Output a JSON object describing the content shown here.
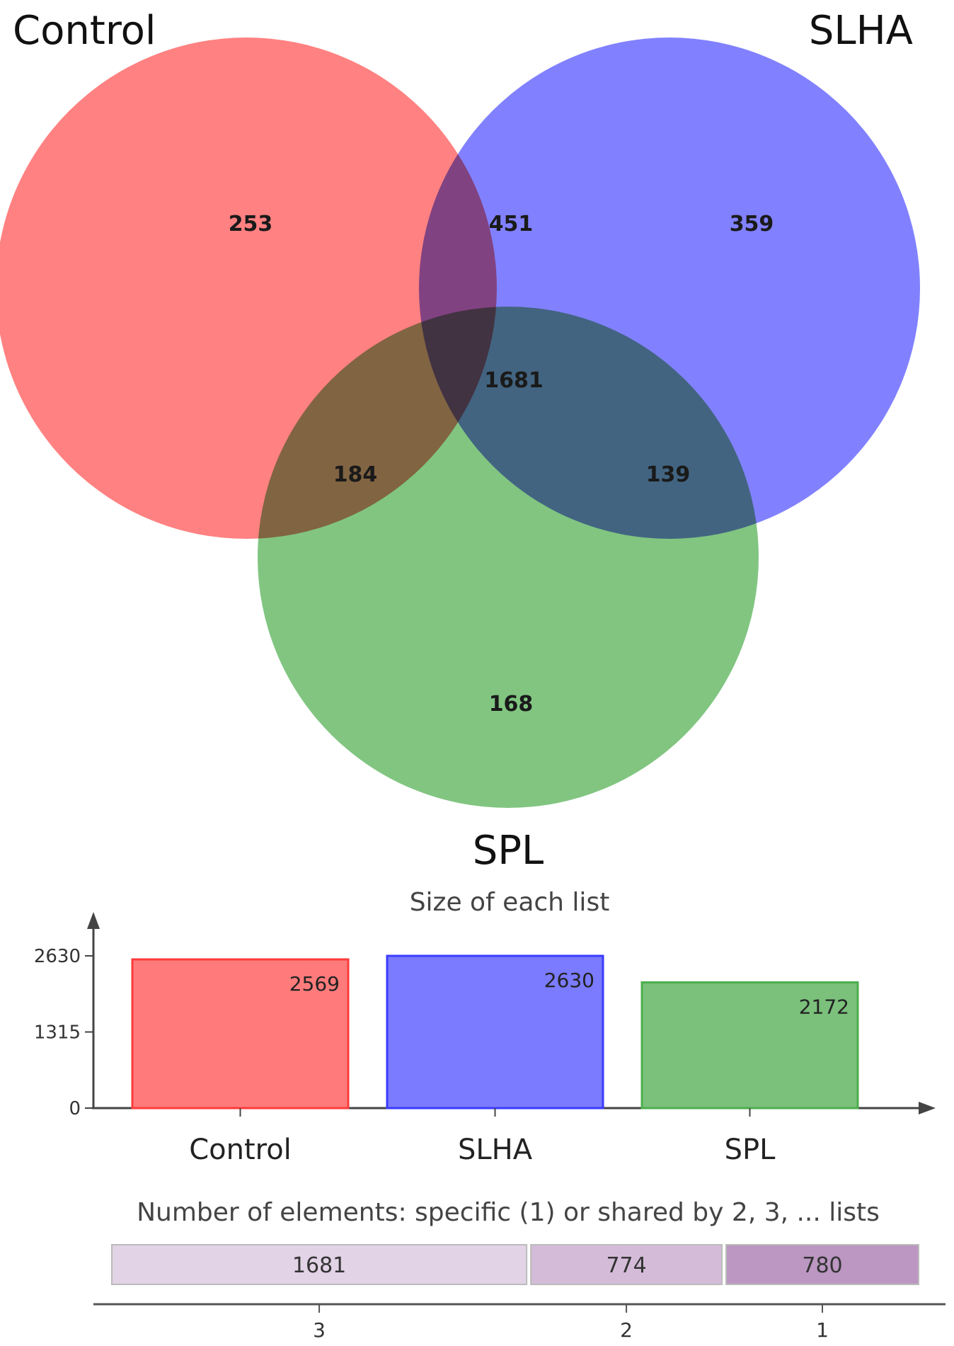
{
  "chart_data": [
    {
      "type": "venn",
      "sets": [
        {
          "name": "Control",
          "color": "#ff6b6b"
        },
        {
          "name": "SLHA",
          "color": "#6b6bff"
        },
        {
          "name": "SPL",
          "color": "#6bbb6b"
        }
      ],
      "regions": {
        "control_only": 253,
        "slha_only": 359,
        "spl_only": 168,
        "control_slha": 451,
        "control_spl": 184,
        "slha_spl": 139,
        "all_three": 1681
      }
    },
    {
      "type": "bar",
      "title": "Size of each list",
      "categories": [
        "Control",
        "SLHA",
        "SPL"
      ],
      "values": [
        2569,
        2630,
        2172
      ],
      "colors": [
        "#ff7b7b",
        "#7b7bff",
        "#7bc07b"
      ],
      "border_colors": [
        "#ff3b3b",
        "#3b3bff",
        "#4caf4c"
      ],
      "yticks": [
        0,
        1315,
        2630
      ],
      "ylim": [
        0,
        2630
      ]
    },
    {
      "type": "bar",
      "orientation": "horizontal-stacked",
      "title": "Number of elements: specific (1) or shared by 2, 3, ... lists",
      "categories": [
        "3",
        "2",
        "1"
      ],
      "values": [
        1681,
        774,
        780
      ],
      "colors": [
        "#e2d3e6",
        "#d4bcd9",
        "#bb97c2"
      ]
    }
  ]
}
